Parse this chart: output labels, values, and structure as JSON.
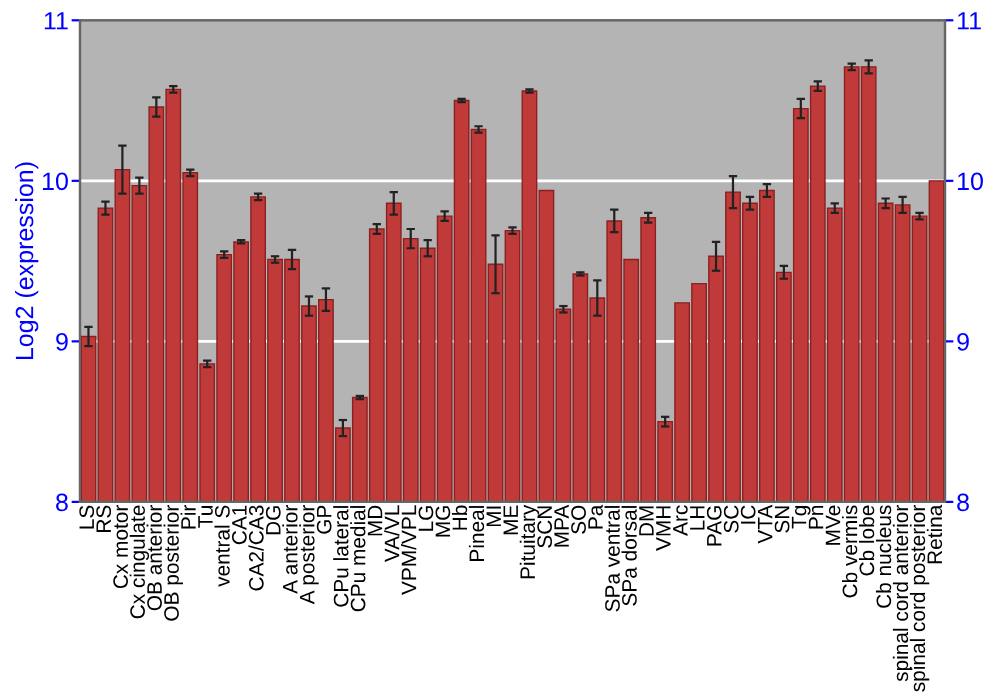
{
  "chart_data": {
    "type": "bar",
    "ylabel": "Log2 (expression)",
    "categories": [
      "LS",
      "RS",
      "Cx motor",
      "Cx cingulate",
      "OB anterior",
      "OB posterior",
      "Pir",
      "Tu",
      "ventral S",
      "CA1",
      "CA2/CA3",
      "DG",
      "A anterior",
      "A posterior",
      "GP",
      "CPu lateral",
      "CPu medial",
      "MD",
      "VA/VL",
      "VPM/VPL",
      "LG",
      "MG",
      "Hb",
      "Pineal",
      "MI",
      "ME",
      "Pituitary",
      "SCN",
      "MPA",
      "SO",
      "Pa",
      "SPa ventral",
      "SPa dorsal",
      "DM",
      "VMH",
      "Arc",
      "LH",
      "PAG",
      "SC",
      "IC",
      "VTA",
      "SN",
      "Tg",
      "Pn",
      "MVe",
      "Cb vermis",
      "Cb lobe",
      "Cb nucleus",
      "spinal cord anterior",
      "spinal cord posterior",
      "Retina"
    ],
    "values": [
      9.03,
      9.83,
      10.07,
      9.97,
      10.46,
      10.57,
      10.05,
      8.86,
      9.54,
      9.62,
      9.9,
      9.51,
      9.51,
      9.22,
      9.26,
      8.46,
      8.65,
      9.7,
      9.86,
      9.64,
      9.58,
      9.78,
      10.5,
      10.32,
      9.48,
      9.69,
      10.56,
      9.94,
      9.2,
      9.42,
      9.27,
      9.75,
      9.51,
      9.77,
      8.5,
      9.24,
      9.36,
      9.53,
      9.93,
      9.86,
      9.94,
      9.43,
      10.45,
      10.59,
      9.83,
      10.71,
      10.71,
      9.86,
      9.85,
      9.78,
      10.0
    ],
    "errors": [
      0.06,
      0.04,
      0.15,
      0.05,
      0.06,
      0.02,
      0.02,
      0.02,
      0.02,
      0.01,
      0.02,
      0.02,
      0.06,
      0.06,
      0.07,
      0.05,
      0.01,
      0.03,
      0.07,
      0.06,
      0.05,
      0.03,
      0.01,
      0.02,
      0.18,
      0.02,
      0.01,
      null,
      0.02,
      0.01,
      0.11,
      0.07,
      null,
      0.03,
      0.03,
      null,
      null,
      0.09,
      0.1,
      0.04,
      0.04,
      0.04,
      0.06,
      0.03,
      0.03,
      0.02,
      0.04,
      0.03,
      0.05,
      0.02,
      null
    ],
    "color": "#c03a3a",
    "ylim": [
      8,
      11
    ],
    "yticks": [
      8,
      9,
      10,
      11
    ],
    "y2lim": [
      8,
      11
    ],
    "y2ticks": [
      8,
      9,
      10,
      11
    ],
    "grid": "y"
  }
}
